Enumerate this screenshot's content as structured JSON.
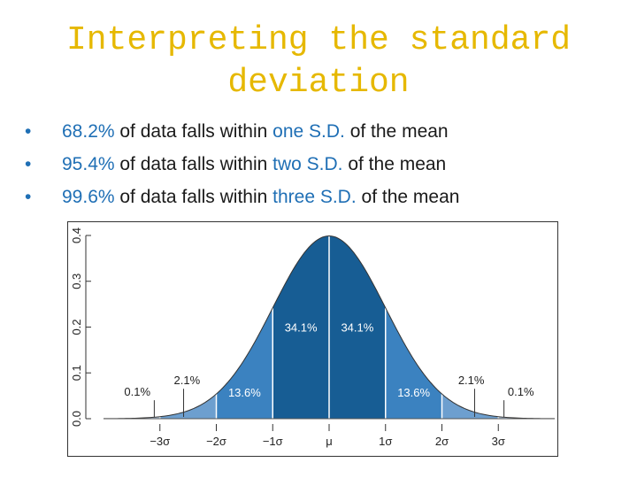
{
  "slide": {
    "title_line1": "Interpreting the standard",
    "title_line2": "deviation"
  },
  "bullets": [
    {
      "pct": "68.2%",
      "mid": " of data falls within ",
      "sd": "one S.D.",
      "end": " of the mean"
    },
    {
      "pct": "95.4%",
      "mid": " of data falls within ",
      "sd": "two S.D.",
      "end": " of the mean"
    },
    {
      "pct": "99.6%",
      "mid": " of data falls within ",
      "sd": "three S.D.",
      "end": " of the mean"
    }
  ],
  "chart_data": {
    "type": "area",
    "distribution": "normal",
    "mean": 0,
    "sd": 1,
    "xlim": [
      -4,
      4
    ],
    "ylim": [
      0,
      0.4
    ],
    "yticks": [
      "0.0",
      "0.1",
      "0.2",
      "0.3",
      "0.4"
    ],
    "yticks_values": [
      0,
      0.1,
      0.2,
      0.3,
      0.4
    ],
    "xticks": [
      "−3σ",
      "−2σ",
      "−1σ",
      "μ",
      "1σ",
      "2σ",
      "3σ"
    ],
    "xticks_values": [
      -3,
      -2,
      -1,
      0,
      1,
      2,
      3
    ],
    "regions": [
      {
        "from": -4,
        "to": -3,
        "label": "0.1%",
        "color": "#b9cfe6"
      },
      {
        "from": -3,
        "to": -2,
        "label": "2.1%",
        "color": "#6d9fcf"
      },
      {
        "from": -2,
        "to": -1,
        "label": "13.6%",
        "color": "#3b82c0"
      },
      {
        "from": -1,
        "to": 0,
        "label": "34.1%",
        "color": "#175d94"
      },
      {
        "from": 0,
        "to": 1,
        "label": "34.1%",
        "color": "#175d94"
      },
      {
        "from": 1,
        "to": 2,
        "label": "13.6%",
        "color": "#3b82c0"
      },
      {
        "from": 2,
        "to": 3,
        "label": "2.1%",
        "color": "#6d9fcf"
      },
      {
        "from": 3,
        "to": 4,
        "label": "0.1%",
        "color": "#b9cfe6"
      }
    ]
  }
}
